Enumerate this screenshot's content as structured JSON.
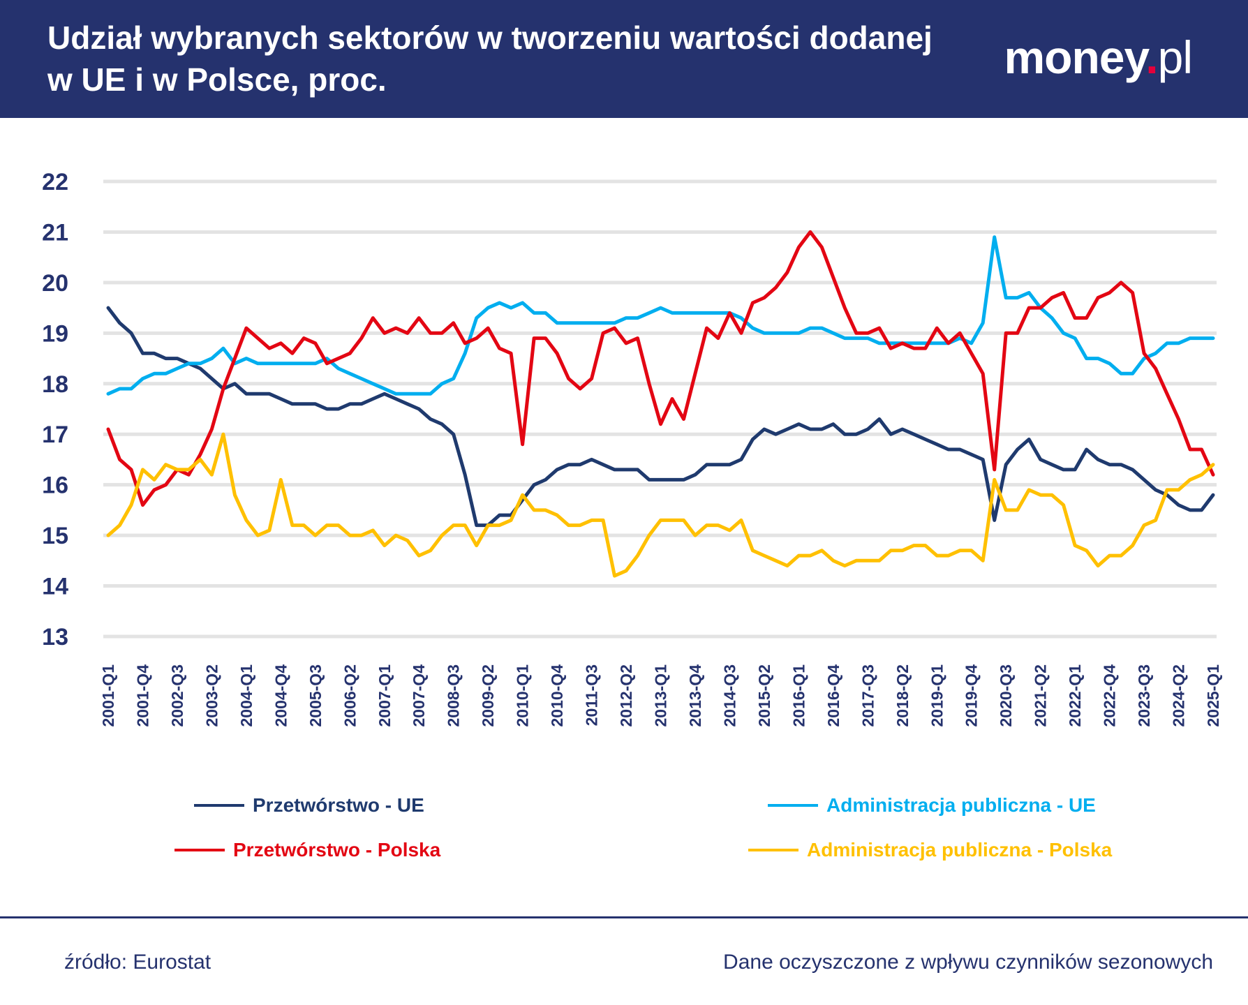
{
  "header": {
    "title": "Udział wybranych sektorów w tworzeniu wartości dodanej w UE i w Polsce, proc.",
    "logo": "money.pl"
  },
  "footer": {
    "source": "źródło: Eurostat",
    "note": "Dane oczyszczone z wpływu czynników sezonowych"
  },
  "chart_data": {
    "type": "line",
    "title": "Udział wybranych sektorów w tworzeniu wartości dodanej w UE i w Polsce, proc.",
    "xlabel": "",
    "ylabel": "",
    "ylim": [
      13,
      22
    ],
    "y_ticks": [
      "13",
      "14",
      "15",
      "16",
      "17",
      "18",
      "19",
      "20",
      "21",
      "22"
    ],
    "x_range": [
      "2001-Q1",
      "2025-Q1"
    ],
    "x_frequency": "quarterly",
    "x_ticks": [
      "2001-Q1",
      "2001-Q4",
      "2002-Q3",
      "2003-Q2",
      "2004-Q1",
      "2004-Q4",
      "2005-Q3",
      "2006-Q2",
      "2007-Q1",
      "2007-Q4",
      "2008-Q3",
      "2009-Q2",
      "2010-Q1",
      "2010-Q4",
      "2011-Q3",
      "2012-Q2",
      "2013-Q1",
      "2013-Q4",
      "2014-Q3",
      "2015-Q2",
      "2016-Q1",
      "2016-Q4",
      "2017-Q3",
      "2018-Q2",
      "2019-Q1",
      "2019-Q4",
      "2020-Q3",
      "2021-Q2",
      "2022-Q1",
      "2022-Q4",
      "2023-Q3",
      "2024-Q2",
      "2025-Q1"
    ],
    "grid": true,
    "legend_position": "bottom",
    "series": [
      {
        "name": "Przetwórstwo - UE",
        "color": "#1f3a6e",
        "values": [
          19.5,
          19.2,
          19.0,
          18.6,
          18.6,
          18.5,
          18.5,
          18.4,
          18.3,
          18.1,
          17.9,
          18.0,
          17.8,
          17.8,
          17.8,
          17.7,
          17.6,
          17.6,
          17.6,
          17.5,
          17.5,
          17.6,
          17.6,
          17.7,
          17.8,
          17.7,
          17.6,
          17.5,
          17.3,
          17.2,
          17.0,
          16.2,
          15.2,
          15.2,
          15.4,
          15.4,
          15.7,
          16.0,
          16.1,
          16.3,
          16.4,
          16.4,
          16.5,
          16.4,
          16.3,
          16.3,
          16.3,
          16.1,
          16.1,
          16.1,
          16.1,
          16.2,
          16.4,
          16.4,
          16.4,
          16.5,
          16.9,
          17.1,
          17.0,
          17.1,
          17.2,
          17.1,
          17.1,
          17.2,
          17.0,
          17.0,
          17.1,
          17.3,
          17.0,
          17.1,
          17.0,
          16.9,
          16.8,
          16.7,
          16.7,
          16.6,
          16.5,
          15.3,
          16.4,
          16.7,
          16.9,
          16.5,
          16.4,
          16.3,
          16.3,
          16.7,
          16.5,
          16.4,
          16.4,
          16.3,
          16.1,
          15.9,
          15.8,
          15.6,
          15.5,
          15.5,
          15.8
        ]
      },
      {
        "name": "Administracja publiczna - UE",
        "color": "#00aeef",
        "values": [
          17.8,
          17.9,
          17.9,
          18.1,
          18.2,
          18.2,
          18.3,
          18.4,
          18.4,
          18.5,
          18.7,
          18.4,
          18.5,
          18.4,
          18.4,
          18.4,
          18.4,
          18.4,
          18.4,
          18.5,
          18.3,
          18.2,
          18.1,
          18.0,
          17.9,
          17.8,
          17.8,
          17.8,
          17.8,
          18.0,
          18.1,
          18.6,
          19.3,
          19.5,
          19.6,
          19.5,
          19.6,
          19.4,
          19.4,
          19.2,
          19.2,
          19.2,
          19.2,
          19.2,
          19.2,
          19.3,
          19.3,
          19.4,
          19.5,
          19.4,
          19.4,
          19.4,
          19.4,
          19.4,
          19.4,
          19.3,
          19.1,
          19.0,
          19.0,
          19.0,
          19.0,
          19.1,
          19.1,
          19.0,
          18.9,
          18.9,
          18.9,
          18.8,
          18.8,
          18.8,
          18.8,
          18.8,
          18.8,
          18.8,
          18.9,
          18.8,
          19.2,
          20.9,
          19.7,
          19.7,
          19.8,
          19.5,
          19.3,
          19.0,
          18.9,
          18.5,
          18.5,
          18.4,
          18.2,
          18.2,
          18.5,
          18.6,
          18.8,
          18.8,
          18.9,
          18.9,
          18.9
        ]
      },
      {
        "name": "Przetwórstwo - Polska",
        "color": "#e30613",
        "values": [
          17.1,
          16.5,
          16.3,
          15.6,
          15.9,
          16.0,
          16.3,
          16.2,
          16.6,
          17.1,
          17.9,
          18.5,
          19.1,
          18.9,
          18.7,
          18.8,
          18.6,
          18.9,
          18.8,
          18.4,
          18.5,
          18.6,
          18.9,
          19.3,
          19.0,
          19.1,
          19.0,
          19.3,
          19.0,
          19.0,
          19.2,
          18.8,
          18.9,
          19.1,
          18.7,
          18.6,
          16.8,
          18.9,
          18.9,
          18.6,
          18.1,
          17.9,
          18.1,
          19.0,
          19.1,
          18.8,
          18.9,
          18.0,
          17.2,
          17.7,
          17.3,
          18.2,
          19.1,
          18.9,
          19.4,
          19.0,
          19.6,
          19.7,
          19.9,
          20.2,
          20.7,
          21.0,
          20.7,
          20.1,
          19.5,
          19.0,
          19.0,
          19.1,
          18.7,
          18.8,
          18.7,
          18.7,
          19.1,
          18.8,
          19.0,
          18.6,
          18.2,
          16.3,
          19.0,
          19.0,
          19.5,
          19.5,
          19.7,
          19.8,
          19.3,
          19.3,
          19.7,
          19.8,
          20.0,
          19.8,
          18.6,
          18.3,
          17.8,
          17.3,
          16.7,
          16.7,
          16.2
        ]
      },
      {
        "name": "Administracja publiczna - Polska",
        "color": "#ffc000",
        "values": [
          15.0,
          15.2,
          15.6,
          16.3,
          16.1,
          16.4,
          16.3,
          16.3,
          16.5,
          16.2,
          17.0,
          15.8,
          15.3,
          15.0,
          15.1,
          16.1,
          15.2,
          15.2,
          15.0,
          15.2,
          15.2,
          15.0,
          15.0,
          15.1,
          14.8,
          15.0,
          14.9,
          14.6,
          14.7,
          15.0,
          15.2,
          15.2,
          14.8,
          15.2,
          15.2,
          15.3,
          15.8,
          15.5,
          15.5,
          15.4,
          15.2,
          15.2,
          15.3,
          15.3,
          14.2,
          14.3,
          14.6,
          15.0,
          15.3,
          15.3,
          15.3,
          15.0,
          15.2,
          15.2,
          15.1,
          15.3,
          14.7,
          14.6,
          14.5,
          14.4,
          14.6,
          14.6,
          14.7,
          14.5,
          14.4,
          14.5,
          14.5,
          14.5,
          14.7,
          14.7,
          14.8,
          14.8,
          14.6,
          14.6,
          14.7,
          14.7,
          14.5,
          16.1,
          15.5,
          15.5,
          15.9,
          15.8,
          15.8,
          15.6,
          14.8,
          14.7,
          14.4,
          14.6,
          14.6,
          14.8,
          15.2,
          15.3,
          15.9,
          15.9,
          16.1,
          16.2,
          16.4
        ]
      }
    ]
  }
}
